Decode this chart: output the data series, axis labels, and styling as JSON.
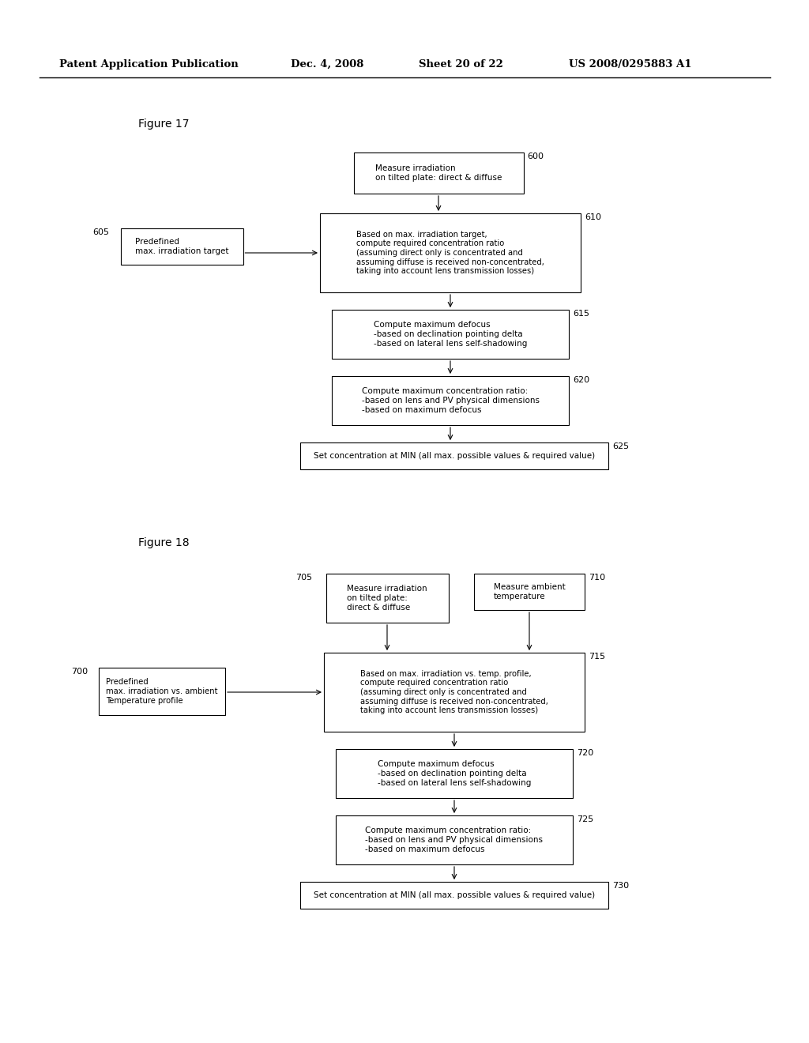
{
  "bg_color": "#ffffff",
  "header_text": "Patent Application Publication",
  "header_date": "Dec. 4, 2008",
  "header_sheet": "Sheet 20 of 22",
  "header_patent": "US 2008/0295883 A1",
  "fig17_label": "Figure 17",
  "fig18_label": "Figure 18"
}
